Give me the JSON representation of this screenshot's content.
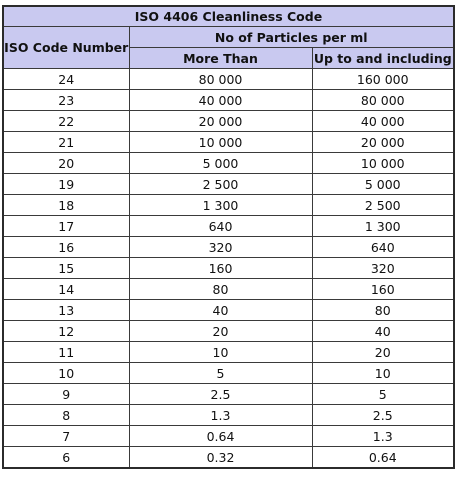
{
  "table": {
    "title": "ISO 4406 Cleanliness Code",
    "col_code": "ISO Code Number",
    "group_header": "No of Particles per ml",
    "col_more": "More Than",
    "col_upto": "Up to and including",
    "rows": [
      {
        "code": "24",
        "more": "80 000",
        "upto": "160 000"
      },
      {
        "code": "23",
        "more": "40 000",
        "upto": "80 000"
      },
      {
        "code": "22",
        "more": "20 000",
        "upto": "40 000"
      },
      {
        "code": "21",
        "more": "10 000",
        "upto": "20 000"
      },
      {
        "code": "20",
        "more": "5 000",
        "upto": "10 000"
      },
      {
        "code": "19",
        "more": "2 500",
        "upto": "5 000"
      },
      {
        "code": "18",
        "more": "1 300",
        "upto": "2 500"
      },
      {
        "code": "17",
        "more": "640",
        "upto": "1 300"
      },
      {
        "code": "16",
        "more": "320",
        "upto": "640"
      },
      {
        "code": "15",
        "more": "160",
        "upto": "320"
      },
      {
        "code": "14",
        "more": "80",
        "upto": "160"
      },
      {
        "code": "13",
        "more": "40",
        "upto": "80"
      },
      {
        "code": "12",
        "more": "20",
        "upto": "40"
      },
      {
        "code": "11",
        "more": "10",
        "upto": "20"
      },
      {
        "code": "10",
        "more": "5",
        "upto": "10"
      },
      {
        "code": "9",
        "more": "2.5",
        "upto": "5"
      },
      {
        "code": "8",
        "more": "1.3",
        "upto": "2.5"
      },
      {
        "code": "7",
        "more": "0.64",
        "upto": "1.3"
      },
      {
        "code": "6",
        "more": "0.32",
        "upto": "0.64"
      }
    ]
  },
  "colors": {
    "header_bg": "#c9c9f0",
    "border": "#3a3a3a"
  }
}
